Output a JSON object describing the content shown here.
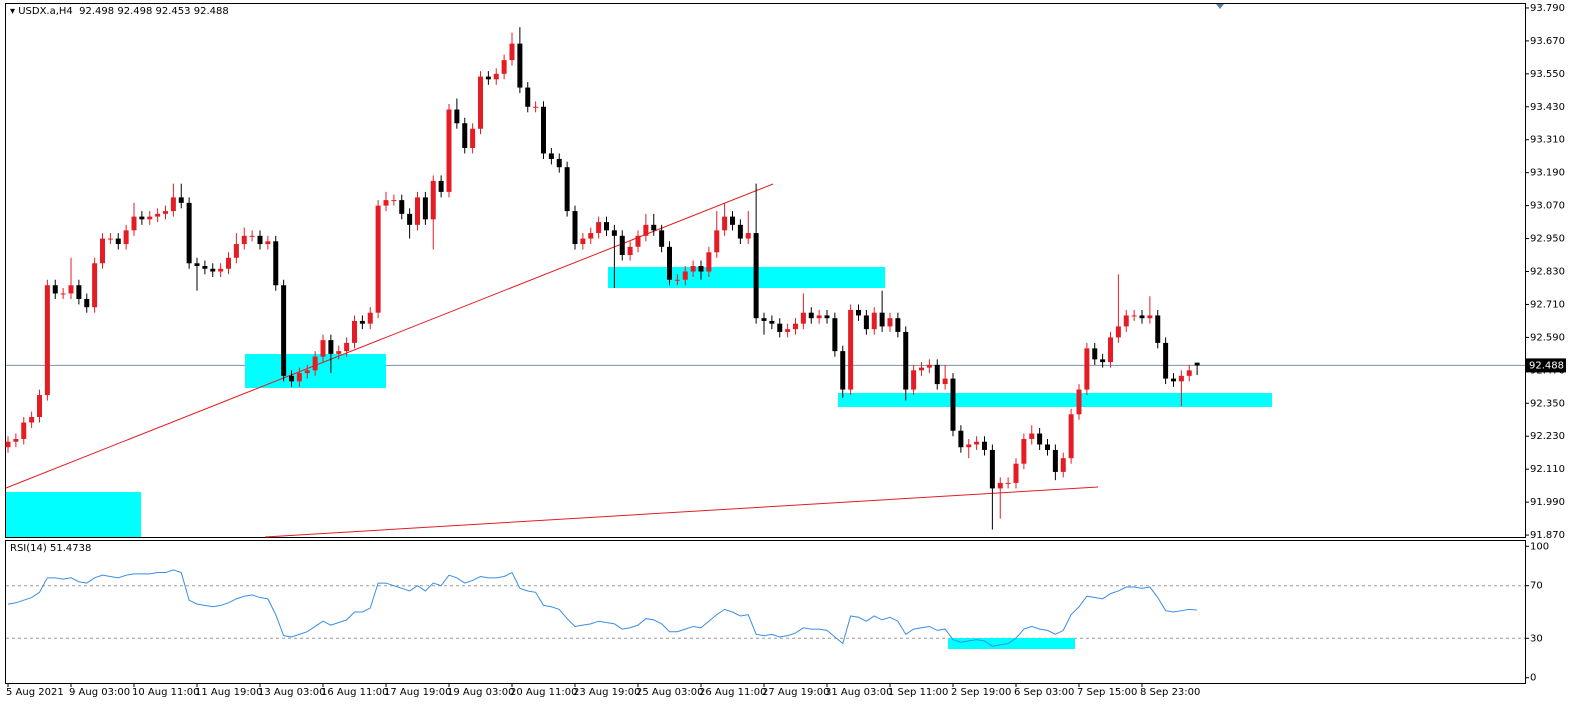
{
  "chart_data": [
    {
      "type": "candlestick",
      "symbol": "USDX.a,H4",
      "up_color": "#e41c24",
      "down_color": "#000000",
      "price_line_color": "#7a8fa6",
      "ylim": [
        91.863,
        93.808
      ],
      "yticks": [
        {
          "value": 93.79,
          "label": "93.790"
        },
        {
          "value": 93.67,
          "label": "93.670"
        },
        {
          "value": 93.55,
          "label": "93.550"
        },
        {
          "value": 93.43,
          "label": "93.430"
        },
        {
          "value": 93.31,
          "label": "93.310"
        },
        {
          "value": 93.19,
          "label": "93.190"
        },
        {
          "value": 93.07,
          "label": "93.070"
        },
        {
          "value": 92.95,
          "label": "92.950"
        },
        {
          "value": 92.83,
          "label": "92.830"
        },
        {
          "value": 92.71,
          "label": "92.710"
        },
        {
          "value": 92.59,
          "label": "92.590"
        },
        {
          "value": 92.47,
          "label": "92.470"
        },
        {
          "value": 92.35,
          "label": "92.350"
        },
        {
          "value": 92.23,
          "label": "92.230"
        },
        {
          "value": 92.11,
          "label": "92.110"
        },
        {
          "value": 91.99,
          "label": "91.990"
        },
        {
          "value": 91.87,
          "label": "91.870"
        }
      ],
      "categories": [
        "5 Aug 2021",
        null,
        null,
        null,
        null,
        null,
        null,
        null,
        "9 Aug 03:00",
        null,
        null,
        null,
        null,
        null,
        null,
        null,
        "10 Aug 11:00",
        null,
        null,
        null,
        null,
        null,
        null,
        null,
        "11 Aug 19:00",
        null,
        null,
        null,
        null,
        null,
        null,
        null,
        "13 Aug 03:00",
        null,
        null,
        null,
        null,
        null,
        null,
        null,
        "16 Aug 11:00",
        null,
        null,
        null,
        null,
        null,
        null,
        null,
        "17 Aug 19:00",
        null,
        null,
        null,
        null,
        null,
        null,
        null,
        "19 Aug 03:00",
        null,
        null,
        null,
        null,
        null,
        null,
        null,
        "20 Aug 11:00",
        null,
        null,
        null,
        null,
        null,
        null,
        null,
        "23 Aug 19:00",
        null,
        null,
        null,
        null,
        null,
        null,
        null,
        "25 Aug 03:00",
        null,
        null,
        null,
        null,
        null,
        null,
        null,
        "26 Aug 11:00",
        null,
        null,
        null,
        null,
        null,
        null,
        null,
        "27 Aug 19:00",
        null,
        null,
        null,
        null,
        null,
        null,
        null,
        "31 Aug 03:00",
        null,
        null,
        null,
        null,
        null,
        null,
        null,
        "1 Sep 11:00",
        null,
        null,
        null,
        null,
        null,
        null,
        null,
        "2 Sep 19:00",
        null,
        null,
        null,
        null,
        null,
        null,
        null,
        "6 Sep 03:00",
        null,
        null,
        null,
        null,
        null,
        null,
        null,
        "7 Sep 15:00",
        null,
        null,
        null,
        null,
        null,
        null,
        null,
        "8 Sep 23:00",
        null,
        null,
        null,
        null,
        null,
        null,
        null
      ],
      "open": [
        92.19,
        92.21,
        92.22,
        92.28,
        92.3,
        92.38,
        92.78,
        92.75,
        92.75,
        92.78,
        92.73,
        92.7,
        92.86,
        92.95,
        92.95,
        92.93,
        92.98,
        93.03,
        93.02,
        93.03,
        93.04,
        93.05,
        93.1,
        93.08,
        92.86,
        92.85,
        92.84,
        92.83,
        92.84,
        92.88,
        92.93,
        92.96,
        92.96,
        92.93,
        92.94,
        92.78,
        92.45,
        92.43,
        92.46,
        92.47,
        92.52,
        92.58,
        92.53,
        92.54,
        92.57,
        92.65,
        92.64,
        92.68,
        93.07,
        93.09,
        93.09,
        93.04,
        93.0,
        93.1,
        93.02,
        93.16,
        93.12,
        93.42,
        93.37,
        93.28,
        93.35,
        93.54,
        93.53,
        93.55,
        93.6,
        93.66,
        93.5,
        93.43,
        93.43,
        93.26,
        93.24,
        93.21,
        93.05,
        92.93,
        92.95,
        92.97,
        93.01,
        92.98,
        92.96,
        92.89,
        92.92,
        92.96,
        93.0,
        92.98,
        92.92,
        92.8,
        92.8,
        92.83,
        92.85,
        92.83,
        92.9,
        92.98,
        93.03,
        93.0,
        92.95,
        92.97,
        92.66,
        92.65,
        92.64,
        92.61,
        92.62,
        92.64,
        92.68,
        92.66,
        92.67,
        92.66,
        92.54,
        92.4,
        92.69,
        92.67,
        92.62,
        92.68,
        92.63,
        92.66,
        92.61,
        92.4,
        92.47,
        92.48,
        92.49,
        92.42,
        92.44,
        92.25,
        92.19,
        92.2,
        92.21,
        92.18,
        92.04,
        92.06,
        92.06,
        92.13,
        92.22,
        92.24,
        92.2,
        92.18,
        92.1,
        92.15,
        92.31,
        92.4,
        92.55,
        92.51,
        92.5,
        92.59,
        92.63,
        92.67,
        92.67,
        92.66,
        92.67,
        92.57,
        92.44,
        92.43,
        92.45,
        92.498
      ],
      "high": [
        92.23,
        92.24,
        92.3,
        92.32,
        92.4,
        92.8,
        92.8,
        92.77,
        92.88,
        92.8,
        92.75,
        92.88,
        92.97,
        92.97,
        92.97,
        93.0,
        93.08,
        93.05,
        93.05,
        93.06,
        93.07,
        93.15,
        93.15,
        93.1,
        92.88,
        92.87,
        92.86,
        92.86,
        92.9,
        92.97,
        92.99,
        92.98,
        92.98,
        92.96,
        92.96,
        92.8,
        92.47,
        92.48,
        92.49,
        92.54,
        92.6,
        92.6,
        92.56,
        92.59,
        92.67,
        92.67,
        92.7,
        93.09,
        93.12,
        93.11,
        93.11,
        93.06,
        93.12,
        93.12,
        93.18,
        93.18,
        93.44,
        93.46,
        93.39,
        93.37,
        93.56,
        93.56,
        93.57,
        93.62,
        93.7,
        93.72,
        93.52,
        93.45,
        93.45,
        93.28,
        93.26,
        93.23,
        93.07,
        92.97,
        92.99,
        93.03,
        93.03,
        93.0,
        92.98,
        92.94,
        92.98,
        93.04,
        93.04,
        93.0,
        92.94,
        92.82,
        92.85,
        92.87,
        92.87,
        92.92,
        93.05,
        93.08,
        93.05,
        93.02,
        93.05,
        93.15,
        92.68,
        92.67,
        92.66,
        92.64,
        92.66,
        92.75,
        92.7,
        92.69,
        92.69,
        92.68,
        92.56,
        92.71,
        92.71,
        92.69,
        92.7,
        92.76,
        92.68,
        92.68,
        92.63,
        92.49,
        92.5,
        92.51,
        92.51,
        92.49,
        92.46,
        92.27,
        92.22,
        92.23,
        92.23,
        92.2,
        92.08,
        92.08,
        92.15,
        92.24,
        92.27,
        92.26,
        92.22,
        92.2,
        92.17,
        92.33,
        92.42,
        92.57,
        92.57,
        92.53,
        92.61,
        92.82,
        92.69,
        92.69,
        92.69,
        92.74,
        92.69,
        92.59,
        92.46,
        92.47,
        92.49,
        92.498
      ],
      "low": [
        92.17,
        92.19,
        92.2,
        92.26,
        92.28,
        92.36,
        92.73,
        92.73,
        92.73,
        92.71,
        92.68,
        92.68,
        92.84,
        92.93,
        92.91,
        92.91,
        92.96,
        93.0,
        93.0,
        93.01,
        93.02,
        93.03,
        93.06,
        92.84,
        92.76,
        92.82,
        92.81,
        92.81,
        92.82,
        92.86,
        92.91,
        92.94,
        92.91,
        92.91,
        92.76,
        92.43,
        92.41,
        92.41,
        92.44,
        92.45,
        92.5,
        92.46,
        92.51,
        92.52,
        92.55,
        92.62,
        92.62,
        92.66,
        93.05,
        93.07,
        93.02,
        92.95,
        92.98,
        93.0,
        92.91,
        93.1,
        93.1,
        93.35,
        93.26,
        93.26,
        93.33,
        93.51,
        93.51,
        93.53,
        93.58,
        93.48,
        93.41,
        93.41,
        93.24,
        93.22,
        93.19,
        93.03,
        92.91,
        92.91,
        92.93,
        92.95,
        92.96,
        92.77,
        92.87,
        92.87,
        92.9,
        92.94,
        92.96,
        92.9,
        92.78,
        92.78,
        92.78,
        92.81,
        92.8,
        92.81,
        92.88,
        92.96,
        92.98,
        92.93,
        92.93,
        92.64,
        92.6,
        92.62,
        92.59,
        92.59,
        92.6,
        92.62,
        92.64,
        92.64,
        92.64,
        92.52,
        92.37,
        92.38,
        92.65,
        92.6,
        92.6,
        92.61,
        92.61,
        92.59,
        92.36,
        92.38,
        92.45,
        92.46,
        92.4,
        92.4,
        92.23,
        92.17,
        92.15,
        92.18,
        92.16,
        91.89,
        91.93,
        92.04,
        92.04,
        92.11,
        92.2,
        92.18,
        92.16,
        92.07,
        92.08,
        92.13,
        92.29,
        92.38,
        92.49,
        92.48,
        92.48,
        92.57,
        92.61,
        92.65,
        92.64,
        92.64,
        92.55,
        92.42,
        92.41,
        92.34,
        92.43,
        92.453
      ],
      "close": [
        92.21,
        92.22,
        92.28,
        92.3,
        92.38,
        92.78,
        92.75,
        92.75,
        92.78,
        92.73,
        92.7,
        92.86,
        92.95,
        92.95,
        92.93,
        92.98,
        93.03,
        93.02,
        93.03,
        93.04,
        93.05,
        93.1,
        93.08,
        92.86,
        92.85,
        92.84,
        92.83,
        92.84,
        92.88,
        92.93,
        92.96,
        92.96,
        92.93,
        92.94,
        92.78,
        92.45,
        92.43,
        92.46,
        92.47,
        92.52,
        92.58,
        92.53,
        92.54,
        92.57,
        92.65,
        92.64,
        92.68,
        93.07,
        93.09,
        93.09,
        93.04,
        93.0,
        93.1,
        93.02,
        93.16,
        93.12,
        93.42,
        93.37,
        93.28,
        93.35,
        93.54,
        93.53,
        93.55,
        93.6,
        93.66,
        93.5,
        93.43,
        93.43,
        93.26,
        93.24,
        93.21,
        93.05,
        92.93,
        92.95,
        92.97,
        93.01,
        92.98,
        92.96,
        92.89,
        92.92,
        92.96,
        93.0,
        92.98,
        92.92,
        92.8,
        92.8,
        92.83,
        92.85,
        92.83,
        92.9,
        92.98,
        93.03,
        93.0,
        92.95,
        92.97,
        92.66,
        92.65,
        92.64,
        92.61,
        92.62,
        92.64,
        92.68,
        92.66,
        92.67,
        92.66,
        92.54,
        92.4,
        92.69,
        92.67,
        92.62,
        92.68,
        92.63,
        92.66,
        92.61,
        92.4,
        92.47,
        92.48,
        92.49,
        92.42,
        92.44,
        92.25,
        92.19,
        92.2,
        92.21,
        92.18,
        92.04,
        92.06,
        92.06,
        92.13,
        92.22,
        92.24,
        92.2,
        92.18,
        92.1,
        92.15,
        92.31,
        92.4,
        92.55,
        92.51,
        92.5,
        92.59,
        92.63,
        92.67,
        92.67,
        92.66,
        92.67,
        92.57,
        92.44,
        92.43,
        92.45,
        92.47,
        92.488
      ]
    },
    {
      "type": "line",
      "name": "RSI(14)",
      "color": "#3a8ee6",
      "level_color": "#9a9a9a",
      "ylim": [
        -4,
        104
      ],
      "yticks": [
        100,
        70,
        30,
        0
      ],
      "levels": [
        70,
        30
      ],
      "values": [
        56,
        57,
        59,
        61,
        65,
        76,
        76,
        75,
        76,
        73,
        72,
        76,
        78,
        77,
        76,
        78,
        79,
        79,
        79,
        80,
        80,
        82,
        80,
        59,
        56,
        55,
        54,
        55,
        57,
        60,
        62,
        63,
        61,
        60,
        48,
        32,
        31,
        33,
        35,
        39,
        43,
        40,
        42,
        44,
        50,
        50,
        53,
        72,
        72,
        70,
        68,
        66,
        70,
        66,
        72,
        70,
        78,
        76,
        72,
        74,
        77,
        76,
        76,
        77,
        80,
        68,
        66,
        65,
        55,
        54,
        52,
        45,
        39,
        40,
        41,
        43,
        42,
        41,
        37,
        38,
        40,
        45,
        44,
        41,
        35,
        35,
        37,
        39,
        38,
        43,
        48,
        52,
        50,
        47,
        48,
        33,
        32,
        33,
        31,
        32,
        34,
        38,
        37,
        37,
        36,
        31,
        26,
        47,
        46,
        43,
        47,
        44,
        46,
        43,
        33,
        37,
        38,
        39,
        36,
        37,
        29,
        27,
        28,
        29,
        28,
        24,
        25,
        26,
        30,
        37,
        39,
        37,
        36,
        33,
        36,
        48,
        54,
        62,
        61,
        60,
        64,
        66,
        69,
        69,
        68,
        69,
        61,
        51,
        50,
        51,
        52,
        51.4738
      ]
    }
  ]
}
